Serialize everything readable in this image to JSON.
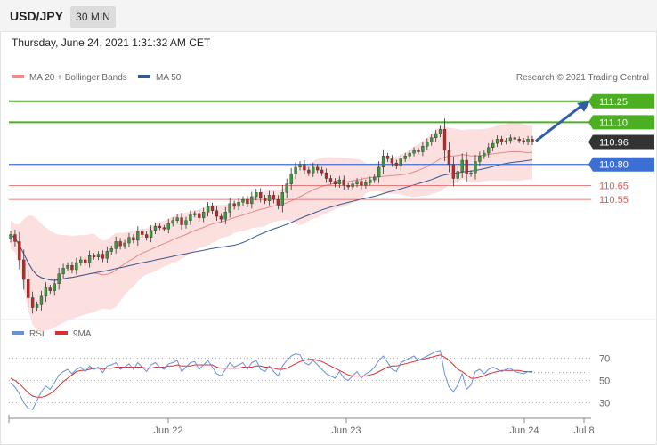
{
  "header": {
    "symbol": "USD/JPY",
    "timeframe": "30 MIN",
    "datetime": "Thursday, June 24, 2021 1:31:32 AM CET"
  },
  "colors": {
    "resistance": "#4caf22",
    "support": "#e05a5a",
    "pivot": "#3b6fd6",
    "current": "#333333",
    "bull_candle": "#3a9a3a",
    "bear_candle": "#c02828",
    "band_fill": "#fbd9d9",
    "ma20": "#e38a8a",
    "ma50": "#35598f",
    "rsi": "#6b8fd8",
    "rsi_ma": "#d83030",
    "arrow": "#2f5ea7"
  },
  "chart_data": [
    {
      "type": "candlestick",
      "legend": [
        {
          "name": "MA 20 + Bollinger Bands",
          "color": "#f08a8a"
        },
        {
          "name": "MA 50",
          "color": "#35598f"
        }
      ],
      "watermark": "Research © 2021 Trading Central",
      "x_ticks": [
        "Jun 22",
        "Jun 23",
        "Jun 24",
        "Jul 8"
      ],
      "ylim": [
        109.72,
        111.35
      ],
      "levels": [
        {
          "value": 111.25,
          "label": "111.25",
          "kind": "resistance"
        },
        {
          "value": 111.1,
          "label": "111.10",
          "kind": "resistance"
        },
        {
          "value": 110.96,
          "label": "110.96",
          "kind": "current"
        },
        {
          "value": 110.8,
          "label": "110.80",
          "kind": "pivot"
        },
        {
          "value": 110.65,
          "label": "110.65",
          "kind": "support"
        },
        {
          "value": 110.55,
          "label": "110.55",
          "kind": "support"
        }
      ],
      "close_series": [
        110.3,
        110.25,
        110.12,
        109.98,
        109.85,
        109.78,
        109.8,
        109.86,
        109.92,
        109.9,
        109.95,
        110.02,
        110.06,
        110.08,
        110.05,
        110.1,
        110.12,
        110.1,
        110.15,
        110.14,
        110.16,
        110.13,
        110.18,
        110.2,
        110.25,
        110.22,
        110.24,
        110.28,
        110.26,
        110.32,
        110.3,
        110.28,
        110.33,
        110.36,
        110.35,
        110.34,
        110.38,
        110.4,
        110.42,
        110.37,
        110.4,
        110.44,
        110.45,
        110.42,
        110.46,
        110.5,
        110.47,
        110.43,
        110.41,
        110.46,
        110.52,
        110.5,
        110.53,
        110.55,
        110.52,
        110.57,
        110.6,
        110.56,
        110.54,
        110.58,
        110.55,
        110.51,
        110.6,
        110.66,
        110.73,
        110.78,
        110.8,
        110.76,
        110.74,
        110.78,
        110.76,
        110.74,
        110.7,
        110.68,
        110.66,
        110.69,
        110.65,
        110.64,
        110.66,
        110.68,
        110.65,
        110.67,
        110.69,
        110.71,
        110.78,
        110.86,
        110.84,
        110.81,
        110.79,
        110.84,
        110.86,
        110.88,
        110.9,
        110.89,
        110.93,
        110.96,
        110.99,
        111.02,
        111.05,
        110.9,
        110.8,
        110.7,
        110.75,
        110.83,
        110.73,
        110.74,
        110.82,
        110.86,
        110.88,
        110.92,
        110.95,
        110.98,
        110.96,
        110.97,
        110.99,
        110.98,
        110.97,
        110.96,
        110.98,
        110.96
      ],
      "rsi_panel": {
        "legend": [
          {
            "name": "RSI",
            "color": "#6b8fd8"
          },
          {
            "name": "9MA",
            "color": "#d83030"
          }
        ],
        "ylim": [
          20,
          80
        ],
        "levels": [
          70,
          50,
          30
        ],
        "level_labels": [
          "70",
          "50",
          "30"
        ],
        "rsi_values": [
          48,
          44,
          38,
          30,
          25,
          24,
          32,
          40,
          45,
          42,
          48,
          55,
          58,
          60,
          56,
          60,
          62,
          58,
          63,
          60,
          62,
          57,
          63,
          64,
          66,
          60,
          62,
          65,
          60,
          66,
          62,
          58,
          64,
          66,
          62,
          60,
          65,
          66,
          68,
          58,
          62,
          66,
          67,
          60,
          64,
          68,
          62,
          56,
          54,
          60,
          66,
          62,
          64,
          66,
          60,
          66,
          68,
          60,
          58,
          63,
          58,
          54,
          63,
          68,
          72,
          74,
          73,
          66,
          64,
          68,
          64,
          60,
          56,
          54,
          52,
          58,
          52,
          50,
          54,
          58,
          52,
          56,
          58,
          62,
          68,
          72,
          66,
          60,
          58,
          66,
          68,
          70,
          72,
          68,
          70,
          72,
          74,
          76,
          77,
          56,
          44,
          40,
          46,
          56,
          42,
          46,
          58,
          60,
          56,
          60,
          62,
          60,
          58,
          60,
          61,
          58,
          57,
          56,
          58,
          57
        ],
        "rsi_ma_values": [
          52,
          50,
          47,
          43,
          39,
          36,
          35,
          35,
          36,
          38,
          41,
          45,
          49,
          52,
          55,
          58,
          59,
          59,
          60,
          61,
          61,
          60,
          61,
          61,
          62,
          62,
          62,
          62,
          62,
          62,
          62,
          61,
          61,
          62,
          62,
          62,
          63,
          63,
          64,
          63,
          63,
          63,
          64,
          64,
          64,
          64,
          64,
          62,
          61,
          61,
          61,
          61,
          61,
          62,
          62,
          62,
          63,
          63,
          62,
          62,
          61,
          60,
          60,
          61,
          63,
          65,
          67,
          68,
          69,
          69,
          68,
          67,
          65,
          63,
          61,
          59,
          57,
          55,
          54,
          54,
          54,
          54,
          55,
          56,
          58,
          60,
          62,
          63,
          63,
          64,
          65,
          66,
          67,
          68,
          69,
          70,
          71,
          72,
          73,
          71,
          68,
          64,
          60,
          58,
          55,
          52,
          52,
          53,
          54,
          56,
          57,
          58,
          59,
          59,
          59,
          59,
          59,
          58,
          58,
          58
        ]
      }
    }
  ]
}
